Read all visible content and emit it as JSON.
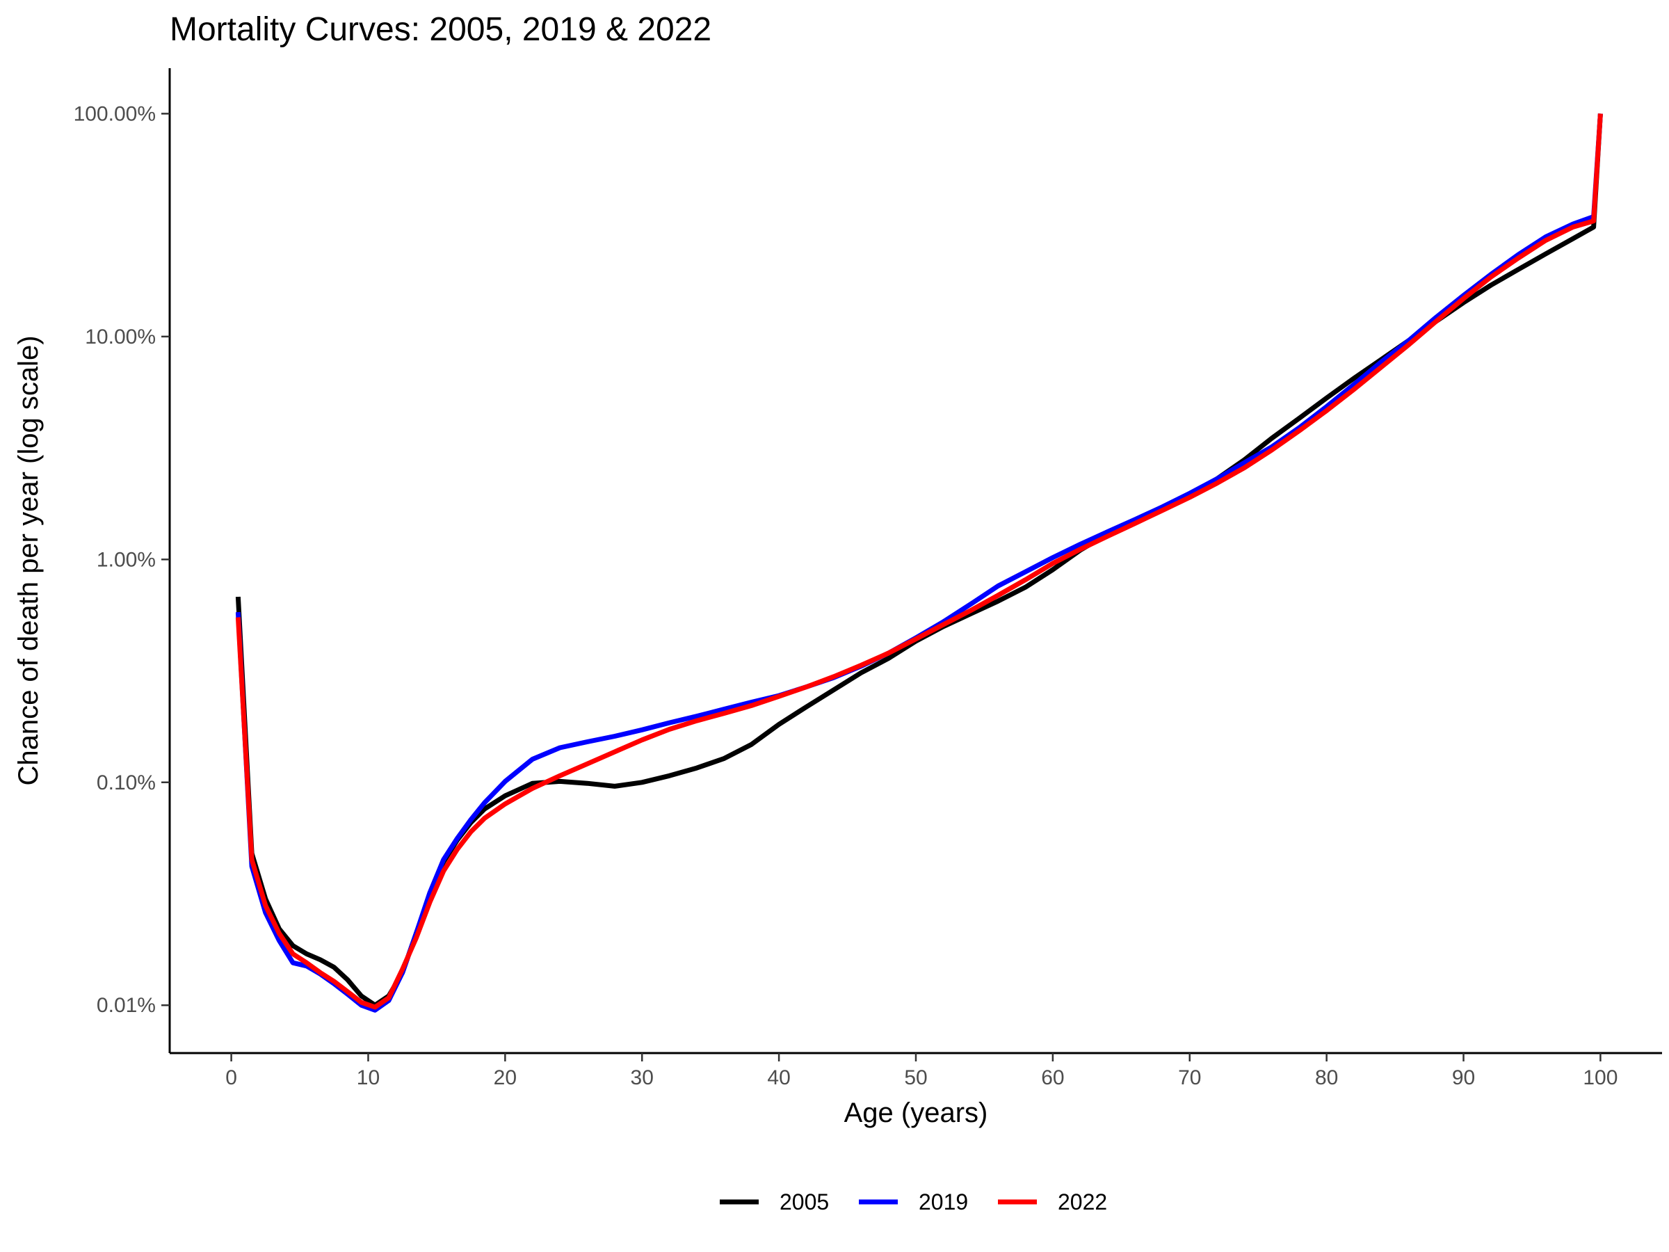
{
  "chart_data": {
    "type": "line",
    "title": "Mortality Curves: 2005, 2019 & 2022",
    "xlabel": "Age (years)",
    "ylabel": "Chance of death per year (log scale)",
    "x_ticks": [
      0,
      10,
      20,
      30,
      40,
      50,
      60,
      70,
      80,
      90,
      100
    ],
    "x_tick_labels": [
      "0",
      "10",
      "20",
      "30",
      "40",
      "50",
      "60",
      "70",
      "80",
      "90",
      "100"
    ],
    "y_scale": "log",
    "y_ticks": [
      0.0001,
      0.001,
      0.01,
      0.1,
      1
    ],
    "y_tick_labels": [
      "0.01%",
      "0.10%",
      "1.00%",
      "10.00%",
      "100.00%"
    ],
    "xlim": [
      -4.5,
      104.5
    ],
    "ylim": [
      6.1e-05,
      1.6
    ],
    "grid": false,
    "legend_position": "bottom",
    "series": [
      {
        "name": "2005",
        "color": "#000000",
        "x": [
          0.5,
          1.5,
          2.5,
          3.5,
          4.5,
          5.5,
          6.5,
          7.5,
          8.5,
          9.5,
          10.5,
          11.5,
          12.5,
          13.5,
          14.5,
          15.5,
          16.5,
          17.5,
          18.5,
          20,
          22,
          24,
          26,
          28,
          30,
          32,
          34,
          36,
          38,
          40,
          42,
          44,
          46,
          48,
          50,
          52,
          54,
          56,
          58,
          60,
          62,
          64,
          66,
          68,
          70,
          72,
          74,
          76,
          78,
          80,
          82,
          84,
          86,
          88,
          90,
          92,
          94,
          96,
          98,
          99.5,
          100
        ],
        "y": [
          0.0068,
          0.00048,
          0.0003,
          0.00022,
          0.000185,
          0.00017,
          0.00016,
          0.000148,
          0.00013,
          0.00011,
          0.0001,
          0.00011,
          0.00014,
          0.00021,
          0.00031,
          0.00044,
          0.00055,
          0.00066,
          0.00076,
          0.00087,
          0.00099,
          0.00101,
          0.00099,
          0.00096,
          0.001,
          0.00107,
          0.00116,
          0.00128,
          0.00148,
          0.00182,
          0.00218,
          0.0026,
          0.0031,
          0.0036,
          0.0043,
          0.005,
          0.0057,
          0.0065,
          0.0075,
          0.009,
          0.011,
          0.013,
          0.0148,
          0.017,
          0.0195,
          0.023,
          0.028,
          0.035,
          0.043,
          0.053,
          0.065,
          0.079,
          0.096,
          0.117,
          0.142,
          0.17,
          0.2,
          0.235,
          0.275,
          0.31,
          1.0
        ]
      },
      {
        "name": "2019",
        "color": "#0000ff",
        "x": [
          0.5,
          1.5,
          2.5,
          3.5,
          4.5,
          5.5,
          6.5,
          7.5,
          8.5,
          9.5,
          10.5,
          11.5,
          12.5,
          13.5,
          14.5,
          15.5,
          16.5,
          17.5,
          18.5,
          20,
          22,
          24,
          26,
          28,
          30,
          32,
          34,
          36,
          38,
          40,
          42,
          44,
          46,
          48,
          50,
          52,
          54,
          56,
          58,
          60,
          62,
          64,
          66,
          68,
          70,
          72,
          74,
          76,
          78,
          80,
          82,
          84,
          86,
          88,
          90,
          92,
          94,
          96,
          98,
          99.5,
          100
        ],
        "y": [
          0.0058,
          0.00042,
          0.00026,
          0.000195,
          0.000155,
          0.00015,
          0.000138,
          0.000125,
          0.000112,
          0.0001,
          9.5e-05,
          0.000105,
          0.00014,
          0.00021,
          0.00032,
          0.00045,
          0.00056,
          0.00068,
          0.00081,
          0.00101,
          0.00127,
          0.00143,
          0.00152,
          0.00161,
          0.00172,
          0.00185,
          0.00198,
          0.00213,
          0.00229,
          0.00245,
          0.00268,
          0.00295,
          0.00332,
          0.0038,
          0.00445,
          0.00525,
          0.0063,
          0.0076,
          0.0088,
          0.0102,
          0.0117,
          0.0133,
          0.0151,
          0.0172,
          0.0198,
          0.023,
          0.0272,
          0.032,
          0.039,
          0.0485,
          0.061,
          0.077,
          0.096,
          0.122,
          0.153,
          0.19,
          0.233,
          0.28,
          0.32,
          0.345,
          1.0
        ]
      },
      {
        "name": "2022",
        "color": "#ff0000",
        "x": [
          0.5,
          1.5,
          2.5,
          3.5,
          4.5,
          5.5,
          6.5,
          7.5,
          8.5,
          9.5,
          10.5,
          11.5,
          12.5,
          13.5,
          14.5,
          15.5,
          16.5,
          17.5,
          18.5,
          20,
          22,
          24,
          26,
          28,
          30,
          32,
          34,
          36,
          38,
          40,
          42,
          44,
          46,
          48,
          50,
          52,
          54,
          56,
          58,
          60,
          62,
          64,
          66,
          68,
          70,
          72,
          74,
          76,
          78,
          80,
          82,
          84,
          86,
          88,
          90,
          92,
          94,
          96,
          98,
          99.5,
          100
        ],
        "y": [
          0.0055,
          0.00045,
          0.00028,
          0.00021,
          0.00017,
          0.000155,
          0.00014,
          0.000128,
          0.000115,
          0.000103,
          9.8e-05,
          0.000108,
          0.000145,
          0.0002,
          0.00029,
          0.0004,
          0.0005,
          0.0006,
          0.00069,
          0.0008,
          0.00094,
          0.00107,
          0.00121,
          0.00137,
          0.00155,
          0.00173,
          0.00189,
          0.00204,
          0.00221,
          0.00243,
          0.00268,
          0.00298,
          0.00335,
          0.0038,
          0.0044,
          0.0051,
          0.0059,
          0.0069,
          0.0081,
          0.0096,
          0.0111,
          0.0127,
          0.0145,
          0.0166,
          0.019,
          0.022,
          0.0258,
          0.031,
          0.0378,
          0.0465,
          0.058,
          0.073,
          0.092,
          0.117,
          0.148,
          0.185,
          0.225,
          0.27,
          0.31,
          0.33,
          1.0
        ]
      }
    ]
  }
}
